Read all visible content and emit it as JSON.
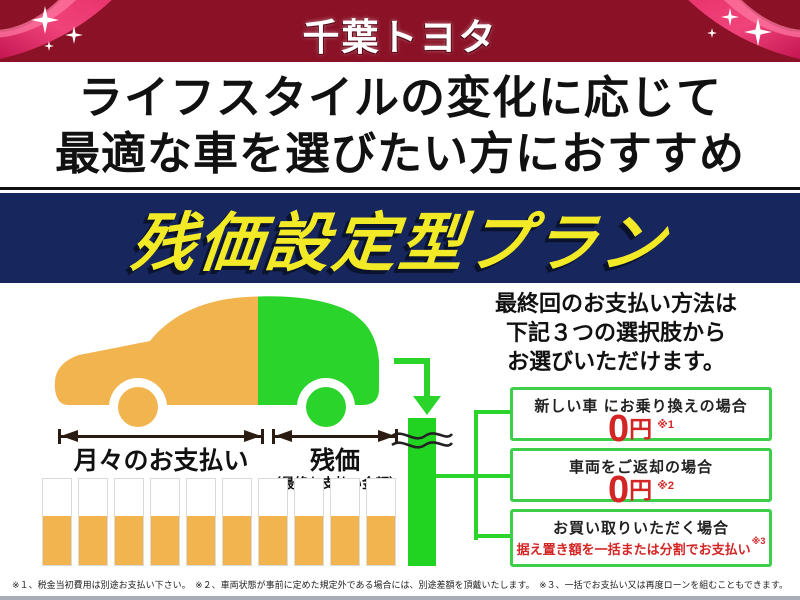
{
  "brand": {
    "name": "千葉トヨタ"
  },
  "headline": {
    "line1": "ライフスタイルの変化に応じて",
    "line2": "最適な車を選びたい方におすすめ"
  },
  "plan_banner": {
    "title": "残価設定型プラン"
  },
  "diagram": {
    "monthly_label": "月々のお支払い",
    "residual_label": "残価",
    "residual_sublabel": "（最終お支払い金額）",
    "monthly_bar_count": 10
  },
  "options": {
    "intro_lines": [
      "最終回のお支払い方法は",
      "下記３つの選択肢から",
      "お選びいただけます。"
    ],
    "items": [
      {
        "label": "新しい車 にお乗り換えの場合",
        "value_number": "0",
        "value_unit": "円",
        "note": "※1"
      },
      {
        "label": "車両をご返却の場合",
        "value_number": "0",
        "value_unit": "円",
        "note": "※2"
      },
      {
        "label": "お買い取りいただく場合",
        "value_text": "据え置き額を一括または分割でお支払い",
        "note": "※3"
      }
    ]
  },
  "footnotes": {
    "text": "※１、税金当初費用は別途お支払い下さい。　※２、車両状態が事前に定めた規定外である場合には、別途差額を頂戴いたします。　※３、一括でお支払い又は再度ローンを組むこともできます。"
  },
  "colors": {
    "maroon": "#8a1126",
    "ribbon_pink": "#e8316b",
    "navy": "#17265c",
    "yellow": "#f2e927",
    "car_orange": "#f1b44e",
    "green": "#2bd42b",
    "box_border_green": "#3ecf4a",
    "price_red": "#d42525",
    "ink": "#1a1a1a"
  }
}
